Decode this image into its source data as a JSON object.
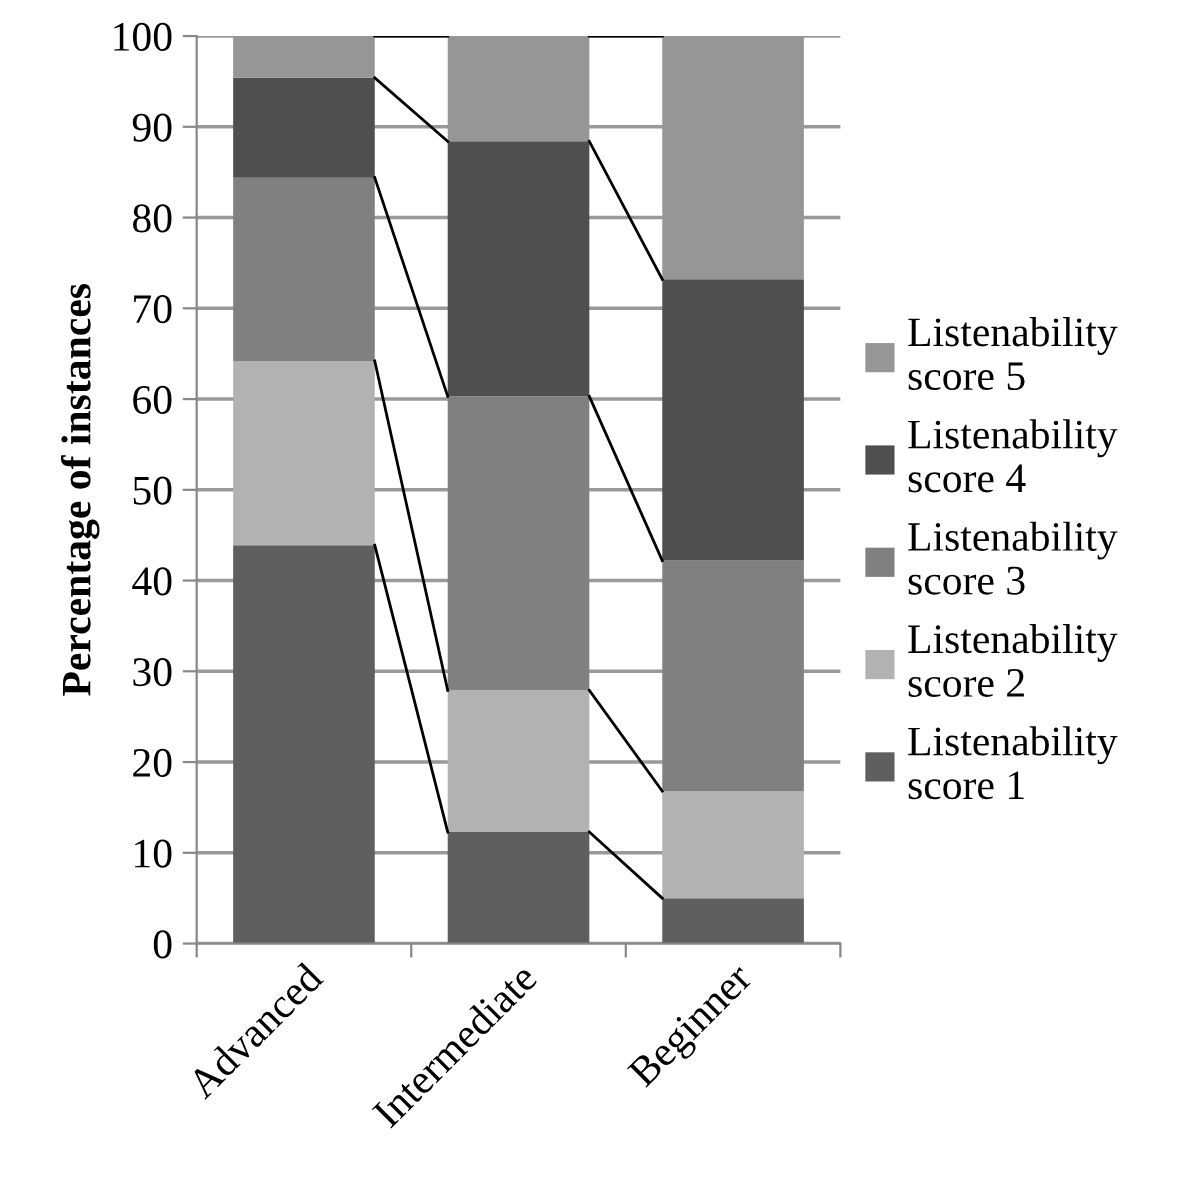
{
  "chart_data": {
    "type": "bar",
    "stacked": true,
    "ylabel": "Percentage of instances",
    "categories": [
      "Advanced",
      "Intermediate",
      "Beginner"
    ],
    "series": [
      {
        "name": "Listenability score 1",
        "color": "#5f5f5f",
        "values": [
          43.9,
          12.3,
          5.0
        ]
      },
      {
        "name": "Listenability score 2",
        "color": "#b2b2b2",
        "values": [
          20.3,
          15.6,
          11.8
        ]
      },
      {
        "name": "Listenability score 3",
        "color": "#808080",
        "values": [
          20.2,
          32.4,
          25.4
        ]
      },
      {
        "name": "Listenability score 4",
        "color": "#4f4f4f",
        "values": [
          11.0,
          28.1,
          31.0
        ]
      },
      {
        "name": "Listenability score 5",
        "color": "#969696",
        "values": [
          4.6,
          11.6,
          26.8
        ]
      }
    ],
    "ylim": [
      0,
      100
    ],
    "yticks": [
      0,
      10,
      20,
      30,
      40,
      50,
      60,
      70,
      80,
      90,
      100
    ],
    "grid": "y",
    "legend": "right"
  }
}
